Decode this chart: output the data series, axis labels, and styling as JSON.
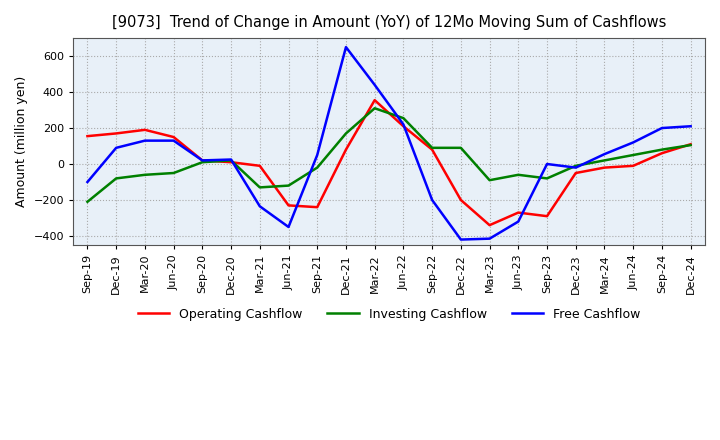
{
  "title": "[9073]  Trend of Change in Amount (YoY) of 12Mo Moving Sum of Cashflows",
  "ylabel": "Amount (million yen)",
  "background_color": "#FFFFFF",
  "plot_bg_color": "#E8F0F8",
  "grid_color": "#AAAAAA",
  "x_labels": [
    "Sep-19",
    "Dec-19",
    "Mar-20",
    "Jun-20",
    "Sep-20",
    "Dec-20",
    "Mar-21",
    "Jun-21",
    "Sep-21",
    "Dec-21",
    "Mar-22",
    "Jun-22",
    "Sep-22",
    "Dec-22",
    "Mar-23",
    "Jun-23",
    "Sep-23",
    "Dec-23",
    "Mar-24",
    "Jun-24",
    "Sep-24",
    "Dec-24"
  ],
  "operating_cashflow": [
    155,
    170,
    190,
    150,
    20,
    10,
    -10,
    -230,
    -240,
    80,
    355,
    210,
    80,
    -200,
    -340,
    -270,
    -290,
    -50,
    -20,
    -10,
    60,
    110
  ],
  "investing_cashflow": [
    -210,
    -80,
    -60,
    -50,
    10,
    20,
    -130,
    -120,
    -20,
    170,
    310,
    255,
    90,
    90,
    -90,
    -60,
    -80,
    -10,
    20,
    50,
    80,
    105
  ],
  "free_cashflow": [
    -100,
    90,
    130,
    130,
    20,
    25,
    -235,
    -350,
    50,
    650,
    440,
    220,
    -200,
    -420,
    -415,
    -320,
    0,
    -20,
    55,
    120,
    200,
    210
  ],
  "operating_color": "#FF0000",
  "investing_color": "#008000",
  "free_color": "#0000FF",
  "ylim": [
    -450,
    700
  ],
  "yticks": [
    -400,
    -200,
    0,
    200,
    400,
    600
  ]
}
